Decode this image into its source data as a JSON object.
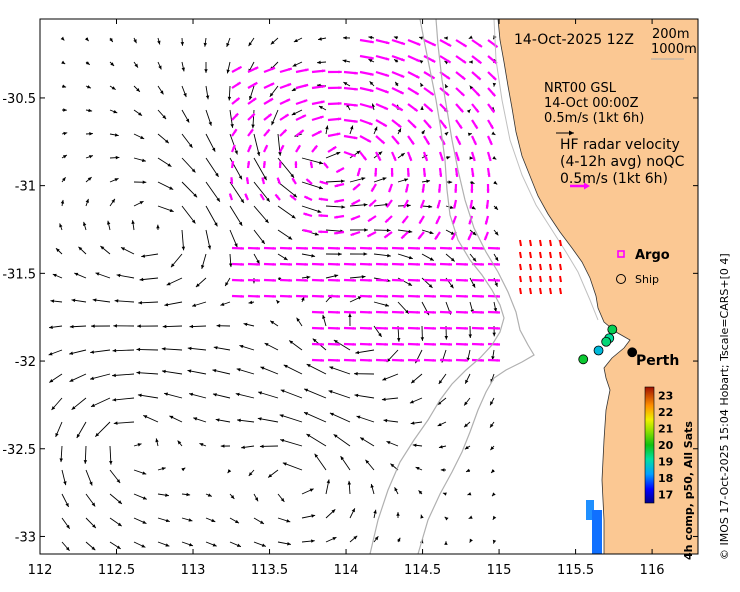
{
  "axes": {
    "x_ticks": [
      "112",
      "112.5",
      "113",
      "113.5",
      "114",
      "114.5",
      "115",
      "115.5",
      "116"
    ],
    "y_ticks": [
      "-30.5",
      "-31",
      "-31.5",
      "-32",
      "-32.5",
      "-33"
    ],
    "x_range": [
      112.0,
      116.3
    ],
    "y_range": [
      -33.1,
      -30.05
    ]
  },
  "header": {
    "timestamp": "14-Oct-2025 12Z",
    "isobath_1": "200m",
    "isobath_2": "1000m"
  },
  "legend": {
    "model_line1": "NRT00 GSL",
    "model_line2": "14-Oct 00:00Z",
    "model_scale": "0.5m/s (1kt 6h)",
    "hf_line1": "HF radar velocity",
    "hf_line2": "(4-12h avg) noQC",
    "hf_scale": "0.5m/s (1kt 6h)",
    "argo_label": "Argo",
    "ship_label": "Ship"
  },
  "places": {
    "perth": "Perth"
  },
  "colorbar": {
    "title": "4h comp, p50, All Sats",
    "labels": [
      "23",
      "22",
      "21",
      "20",
      "19",
      "18",
      "17"
    ],
    "range": [
      16.5,
      23.5
    ]
  },
  "credit": "© IMOS 17-Oct-2025 15:04 Hobart; Tscale=CARS+[0 4]",
  "colors": {
    "land": "#fbc893",
    "hf_arrow": "#ff00ff",
    "model_arrow": "#000000",
    "isobath": "#aaaaaa",
    "red_vectors": "#ff0000"
  },
  "drifters": [
    {
      "lon": 115.74,
      "lat": -31.82,
      "temp": 19.6
    },
    {
      "lon": 115.72,
      "lat": -31.87,
      "temp": 19.2
    },
    {
      "lon": 115.7,
      "lat": -31.89,
      "temp": 19.4
    },
    {
      "lon": 115.65,
      "lat": -31.94,
      "temp": 18.6
    },
    {
      "lon": 115.55,
      "lat": -31.99,
      "temp": 19.8
    },
    {
      "lon": 115.87,
      "lat": -31.95,
      "temp": 16.5
    }
  ]
}
